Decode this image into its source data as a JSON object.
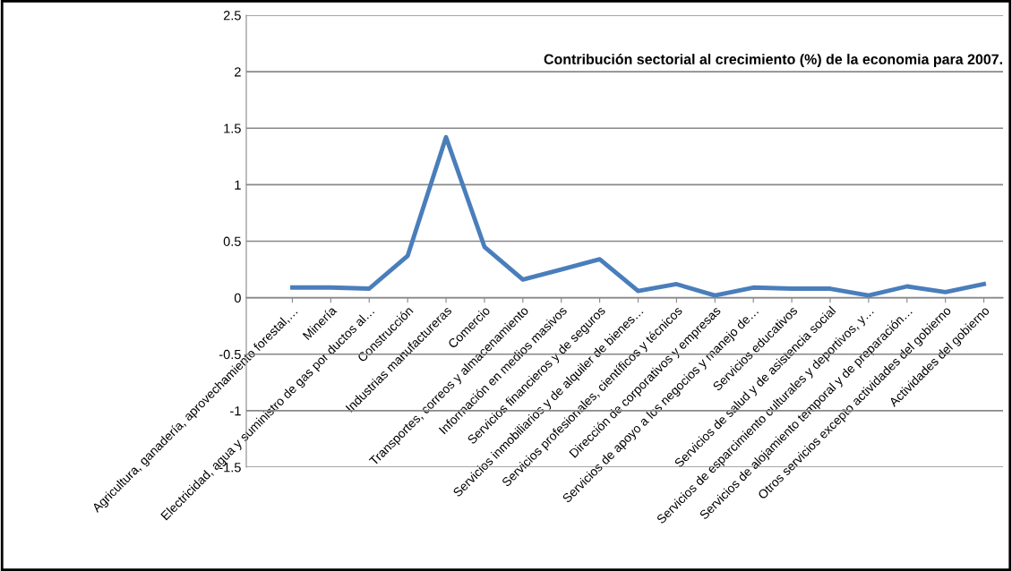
{
  "chart_data": {
    "type": "line",
    "title": "Contribución sectorial al crecimiento (%) de la economia para 2007.",
    "categories": [
      "Agricultura, ganadería, aprovechamiento forestal,…",
      "Minería",
      "Electricidad, agua y suministro de gas por ductos al…",
      "Construcción",
      "Industrias manufactureras",
      "Comercio",
      "Transportes, correos y almacenamiento",
      "Información en medios masivos",
      "Servicios financieros y de seguros",
      "Servicios inmobiliarios y de alquiler de bienes…",
      "Servicios profesionales, científicos y técnicos",
      "Dirección de corporativos y empresas",
      "Servicios de apoyo a los negocios y manejo de…",
      "Servicios educativos",
      "Servicios de salud y de asistencia social",
      "Servicios de esparcimiento culturales y deportivos, y…",
      "Servicios de alojamiento temporal y de preparación…",
      "Otros servicios excepto actividades del gobierno",
      "Actividades del gobierno"
    ],
    "series": [
      {
        "color": "#4a7ebb",
        "values": [
          0.09,
          0.09,
          0.08,
          0.37,
          1.42,
          0.45,
          0.16,
          0.25,
          0.34,
          0.06,
          0.12,
          0.02,
          0.09,
          0.08,
          0.08,
          0.02,
          0.1,
          0.05,
          0.12
        ]
      }
    ],
    "ylim": [
      -1.5,
      2.5
    ],
    "yticks": [
      -1.5,
      -1,
      -0.5,
      0,
      0.5,
      1,
      1.5,
      2,
      2.5
    ],
    "grid": "y",
    "legend": false,
    "marker": "none",
    "line_style": "solid"
  }
}
